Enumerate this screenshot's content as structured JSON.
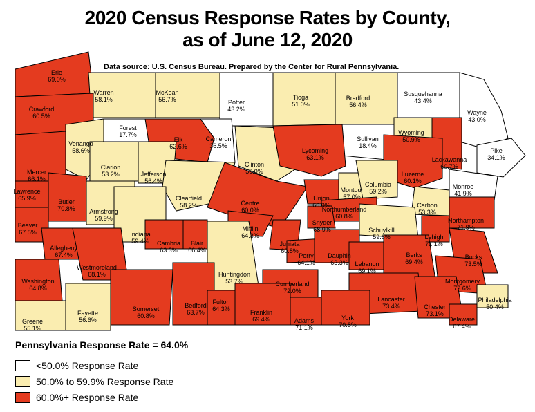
{
  "title_line1": "2020 Census Response Rates by County,",
  "title_line2": "as of June 12, 2020",
  "source": "Data source: U.S. Census Bureau. Prepared by the Center for Rural Pennsylvania.",
  "state_rate": "Pennsylvania Response Rate = 64.0%",
  "colors": {
    "low": "#ffffff",
    "mid": "#faedb0",
    "high": "#e43b1f",
    "border": "#000000"
  },
  "legend": [
    {
      "label": "<50.0% Response Rate",
      "category": "low"
    },
    {
      "label": "50.0% to 59.9% Response Rate",
      "category": "mid"
    },
    {
      "label": "60.0%+ Response Rate",
      "category": "high"
    }
  ],
  "counties": [
    {
      "name": "Erie",
      "rate": "69.0%",
      "category": "high"
    },
    {
      "name": "Warren",
      "rate": "58.1%",
      "category": "mid"
    },
    {
      "name": "McKean",
      "rate": "56.7%",
      "category": "mid"
    },
    {
      "name": "Potter",
      "rate": "43.2%",
      "category": "low"
    },
    {
      "name": "Tioga",
      "rate": "51.0%",
      "category": "mid"
    },
    {
      "name": "Bradford",
      "rate": "56.4%",
      "category": "mid"
    },
    {
      "name": "Susquehanna",
      "rate": "43.4%",
      "category": "low"
    },
    {
      "name": "Wayne",
      "rate": "43.0%",
      "category": "low"
    },
    {
      "name": "Crawford",
      "rate": "60.5%",
      "category": "high"
    },
    {
      "name": "Forest",
      "rate": "17.7%",
      "category": "low"
    },
    {
      "name": "Elk",
      "rate": "62.6%",
      "category": "high"
    },
    {
      "name": "Cameron",
      "rate": "36.5%",
      "category": "low"
    },
    {
      "name": "Sullivan",
      "rate": "18.4%",
      "category": "low"
    },
    {
      "name": "Wyoming",
      "rate": "50.9%",
      "category": "mid"
    },
    {
      "name": "Lackawanna",
      "rate": "60.7%",
      "category": "high"
    },
    {
      "name": "Pike",
      "rate": "34.1%",
      "category": "low"
    },
    {
      "name": "Venango",
      "rate": "58.6%",
      "category": "mid"
    },
    {
      "name": "Mercer",
      "rate": "66.1%",
      "category": "high"
    },
    {
      "name": "Clarion",
      "rate": "53.2%",
      "category": "mid"
    },
    {
      "name": "Jefferson",
      "rate": "56.4%",
      "category": "mid"
    },
    {
      "name": "Clinton",
      "rate": "56.0%",
      "category": "mid"
    },
    {
      "name": "Lycoming",
      "rate": "63.1%",
      "category": "high"
    },
    {
      "name": "Luzerne",
      "rate": "60.1%",
      "category": "high"
    },
    {
      "name": "Monroe",
      "rate": "41.9%",
      "category": "low"
    },
    {
      "name": "Lawrence",
      "rate": "65.9%",
      "category": "high"
    },
    {
      "name": "Butler",
      "rate": "70.8%",
      "category": "high"
    },
    {
      "name": "Clearfield",
      "rate": "58.2%",
      "category": "mid"
    },
    {
      "name": "Centre",
      "rate": "60.0%",
      "category": "high"
    },
    {
      "name": "Union",
      "rate": "66.0%",
      "category": "high"
    },
    {
      "name": "Montour",
      "rate": "57.0%",
      "category": "mid"
    },
    {
      "name": "Columbia",
      "rate": "59.2%",
      "category": "mid"
    },
    {
      "name": "Northumberland",
      "rate": "60.8%",
      "category": "high"
    },
    {
      "name": "Carbon",
      "rate": "53.3%",
      "category": "mid"
    },
    {
      "name": "Beaver",
      "rate": "67.5%",
      "category": "high"
    },
    {
      "name": "Armstrong",
      "rate": "59.9%",
      "category": "mid"
    },
    {
      "name": "Indiana",
      "rate": "59.4%",
      "category": "mid"
    },
    {
      "name": "Snyder",
      "rate": "68.9%",
      "category": "high"
    },
    {
      "name": "Schuylkill",
      "rate": "59.6%",
      "category": "mid"
    },
    {
      "name": "Northampton",
      "rate": "71.9%",
      "category": "high"
    },
    {
      "name": "Lehigh",
      "rate": "71.1%",
      "category": "high"
    },
    {
      "name": "Allegheny",
      "rate": "67.4%",
      "category": "high"
    },
    {
      "name": "Mifflin",
      "rate": "64.3%",
      "category": "high"
    },
    {
      "name": "Juniata",
      "rate": "60.8%",
      "category": "high"
    },
    {
      "name": "Cambria",
      "rate": "63.3%",
      "category": "high"
    },
    {
      "name": "Blair",
      "rate": "66.4%",
      "category": "high"
    },
    {
      "name": "Perry",
      "rate": "64.1%",
      "category": "high"
    },
    {
      "name": "Dauphin",
      "rate": "63.3%",
      "category": "high"
    },
    {
      "name": "Lebanon",
      "rate": "69.1%",
      "category": "high"
    },
    {
      "name": "Berks",
      "rate": "69.4%",
      "category": "high"
    },
    {
      "name": "Bucks",
      "rate": "73.5%",
      "category": "high"
    },
    {
      "name": "Westmoreland",
      "rate": "68.1%",
      "category": "high"
    },
    {
      "name": "Washington",
      "rate": "64.8%",
      "category": "high"
    },
    {
      "name": "Huntingdon",
      "rate": "53.7%",
      "category": "mid"
    },
    {
      "name": "Cumberland",
      "rate": "72.0%",
      "category": "high"
    },
    {
      "name": "Montgomery",
      "rate": "72.6%",
      "category": "high"
    },
    {
      "name": "Lancaster",
      "rate": "73.4%",
      "category": "high"
    },
    {
      "name": "Philadelphia",
      "rate": "50.4%",
      "category": "mid"
    },
    {
      "name": "Somerset",
      "rate": "60.8%",
      "category": "high"
    },
    {
      "name": "Bedford",
      "rate": "63.7%",
      "category": "high"
    },
    {
      "name": "Fulton",
      "rate": "64.3%",
      "category": "high"
    },
    {
      "name": "Franklin",
      "rate": "69.4%",
      "category": "high"
    },
    {
      "name": "Adams",
      "rate": "71.1%",
      "category": "high"
    },
    {
      "name": "York",
      "rate": "70.8%",
      "category": "high"
    },
    {
      "name": "Chester",
      "rate": "73.1%",
      "category": "high"
    },
    {
      "name": "Delaware",
      "rate": "67.4%",
      "category": "high"
    },
    {
      "name": "Greene",
      "rate": "55.1%",
      "category": "mid"
    },
    {
      "name": "Fayette",
      "rate": "56.6%",
      "category": "mid"
    }
  ]
}
